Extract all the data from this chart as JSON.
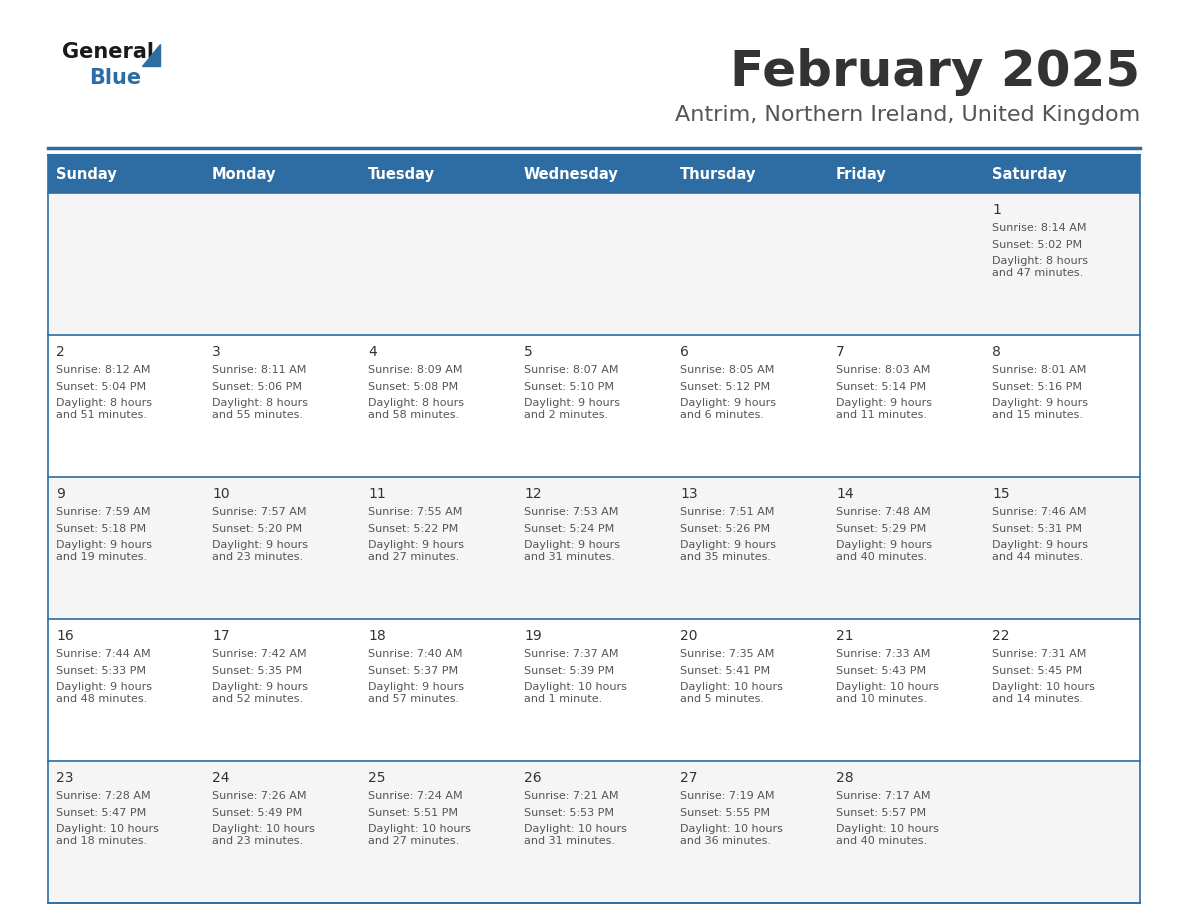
{
  "title": "February 2025",
  "subtitle": "Antrim, Northern Ireland, United Kingdom",
  "header_bg_color": "#2E6DA4",
  "header_text_color": "#FFFFFF",
  "cell_bg_even": "#F5F5F5",
  "cell_bg_odd": "#FFFFFF",
  "border_color": "#2E6DA4",
  "day_number_color": "#333333",
  "cell_text_color": "#555555",
  "title_color": "#333333",
  "subtitle_color": "#555555",
  "days_of_week": [
    "Sunday",
    "Monday",
    "Tuesday",
    "Wednesday",
    "Thursday",
    "Friday",
    "Saturday"
  ],
  "calendar": [
    [
      null,
      null,
      null,
      null,
      null,
      null,
      1
    ],
    [
      2,
      3,
      4,
      5,
      6,
      7,
      8
    ],
    [
      9,
      10,
      11,
      12,
      13,
      14,
      15
    ],
    [
      16,
      17,
      18,
      19,
      20,
      21,
      22
    ],
    [
      23,
      24,
      25,
      26,
      27,
      28,
      null
    ]
  ],
  "cell_data": {
    "1": {
      "sunrise": "8:14 AM",
      "sunset": "5:02 PM",
      "daylight": "8 hours\nand 47 minutes."
    },
    "2": {
      "sunrise": "8:12 AM",
      "sunset": "5:04 PM",
      "daylight": "8 hours\nand 51 minutes."
    },
    "3": {
      "sunrise": "8:11 AM",
      "sunset": "5:06 PM",
      "daylight": "8 hours\nand 55 minutes."
    },
    "4": {
      "sunrise": "8:09 AM",
      "sunset": "5:08 PM",
      "daylight": "8 hours\nand 58 minutes."
    },
    "5": {
      "sunrise": "8:07 AM",
      "sunset": "5:10 PM",
      "daylight": "9 hours\nand 2 minutes."
    },
    "6": {
      "sunrise": "8:05 AM",
      "sunset": "5:12 PM",
      "daylight": "9 hours\nand 6 minutes."
    },
    "7": {
      "sunrise": "8:03 AM",
      "sunset": "5:14 PM",
      "daylight": "9 hours\nand 11 minutes."
    },
    "8": {
      "sunrise": "8:01 AM",
      "sunset": "5:16 PM",
      "daylight": "9 hours\nand 15 minutes."
    },
    "9": {
      "sunrise": "7:59 AM",
      "sunset": "5:18 PM",
      "daylight": "9 hours\nand 19 minutes."
    },
    "10": {
      "sunrise": "7:57 AM",
      "sunset": "5:20 PM",
      "daylight": "9 hours\nand 23 minutes."
    },
    "11": {
      "sunrise": "7:55 AM",
      "sunset": "5:22 PM",
      "daylight": "9 hours\nand 27 minutes."
    },
    "12": {
      "sunrise": "7:53 AM",
      "sunset": "5:24 PM",
      "daylight": "9 hours\nand 31 minutes."
    },
    "13": {
      "sunrise": "7:51 AM",
      "sunset": "5:26 PM",
      "daylight": "9 hours\nand 35 minutes."
    },
    "14": {
      "sunrise": "7:48 AM",
      "sunset": "5:29 PM",
      "daylight": "9 hours\nand 40 minutes."
    },
    "15": {
      "sunrise": "7:46 AM",
      "sunset": "5:31 PM",
      "daylight": "9 hours\nand 44 minutes."
    },
    "16": {
      "sunrise": "7:44 AM",
      "sunset": "5:33 PM",
      "daylight": "9 hours\nand 48 minutes."
    },
    "17": {
      "sunrise": "7:42 AM",
      "sunset": "5:35 PM",
      "daylight": "9 hours\nand 52 minutes."
    },
    "18": {
      "sunrise": "7:40 AM",
      "sunset": "5:37 PM",
      "daylight": "9 hours\nand 57 minutes."
    },
    "19": {
      "sunrise": "7:37 AM",
      "sunset": "5:39 PM",
      "daylight": "10 hours\nand 1 minute."
    },
    "20": {
      "sunrise": "7:35 AM",
      "sunset": "5:41 PM",
      "daylight": "10 hours\nand 5 minutes."
    },
    "21": {
      "sunrise": "7:33 AM",
      "sunset": "5:43 PM",
      "daylight": "10 hours\nand 10 minutes."
    },
    "22": {
      "sunrise": "7:31 AM",
      "sunset": "5:45 PM",
      "daylight": "10 hours\nand 14 minutes."
    },
    "23": {
      "sunrise": "7:28 AM",
      "sunset": "5:47 PM",
      "daylight": "10 hours\nand 18 minutes."
    },
    "24": {
      "sunrise": "7:26 AM",
      "sunset": "5:49 PM",
      "daylight": "10 hours\nand 23 minutes."
    },
    "25": {
      "sunrise": "7:24 AM",
      "sunset": "5:51 PM",
      "daylight": "10 hours\nand 27 minutes."
    },
    "26": {
      "sunrise": "7:21 AM",
      "sunset": "5:53 PM",
      "daylight": "10 hours\nand 31 minutes."
    },
    "27": {
      "sunrise": "7:19 AM",
      "sunset": "5:55 PM",
      "daylight": "10 hours\nand 36 minutes."
    },
    "28": {
      "sunrise": "7:17 AM",
      "sunset": "5:57 PM",
      "daylight": "10 hours\nand 40 minutes."
    }
  }
}
